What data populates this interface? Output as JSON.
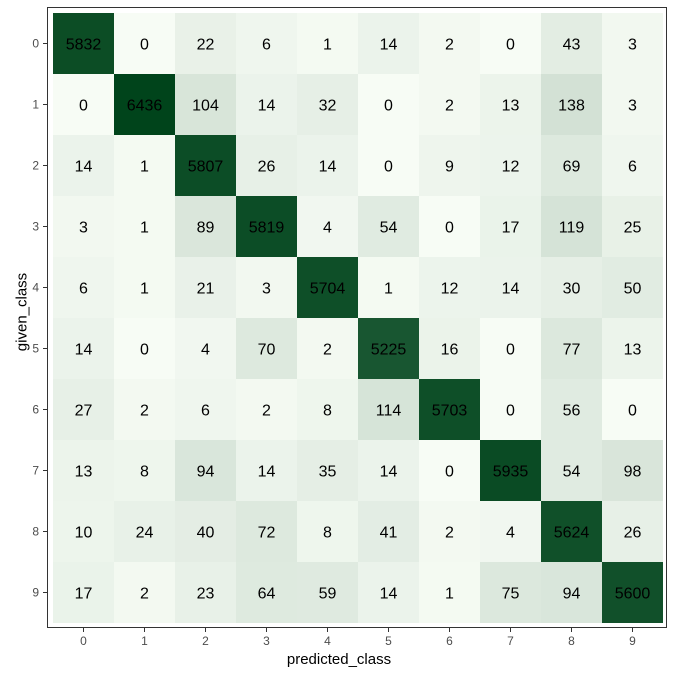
{
  "chart_data": {
    "type": "heatmap",
    "title": "",
    "xlabel": "predicted_class",
    "ylabel": "given_class",
    "x_categories": [
      "0",
      "1",
      "2",
      "3",
      "4",
      "5",
      "6",
      "7",
      "8",
      "9"
    ],
    "y_categories": [
      "0",
      "1",
      "2",
      "3",
      "4",
      "5",
      "6",
      "7",
      "8",
      "9"
    ],
    "matrix": [
      [
        5832,
        0,
        22,
        6,
        1,
        14,
        2,
        0,
        43,
        3
      ],
      [
        0,
        6436,
        104,
        14,
        32,
        0,
        2,
        13,
        138,
        3
      ],
      [
        14,
        1,
        5807,
        26,
        14,
        0,
        9,
        12,
        69,
        6
      ],
      [
        3,
        1,
        89,
        5819,
        4,
        54,
        0,
        17,
        119,
        25
      ],
      [
        6,
        1,
        21,
        3,
        5704,
        1,
        12,
        14,
        30,
        50
      ],
      [
        14,
        0,
        4,
        70,
        2,
        5225,
        16,
        0,
        77,
        13
      ],
      [
        27,
        2,
        6,
        2,
        8,
        114,
        5703,
        0,
        56,
        0
      ],
      [
        13,
        8,
        94,
        14,
        35,
        14,
        0,
        5935,
        54,
        98
      ],
      [
        10,
        24,
        40,
        72,
        8,
        41,
        2,
        4,
        5624,
        26
      ],
      [
        17,
        2,
        23,
        64,
        59,
        14,
        1,
        75,
        94,
        5600
      ]
    ],
    "colors": {
      "low": "#f7fcf5",
      "high": "#00441b"
    },
    "grid": false,
    "legend": "none"
  }
}
